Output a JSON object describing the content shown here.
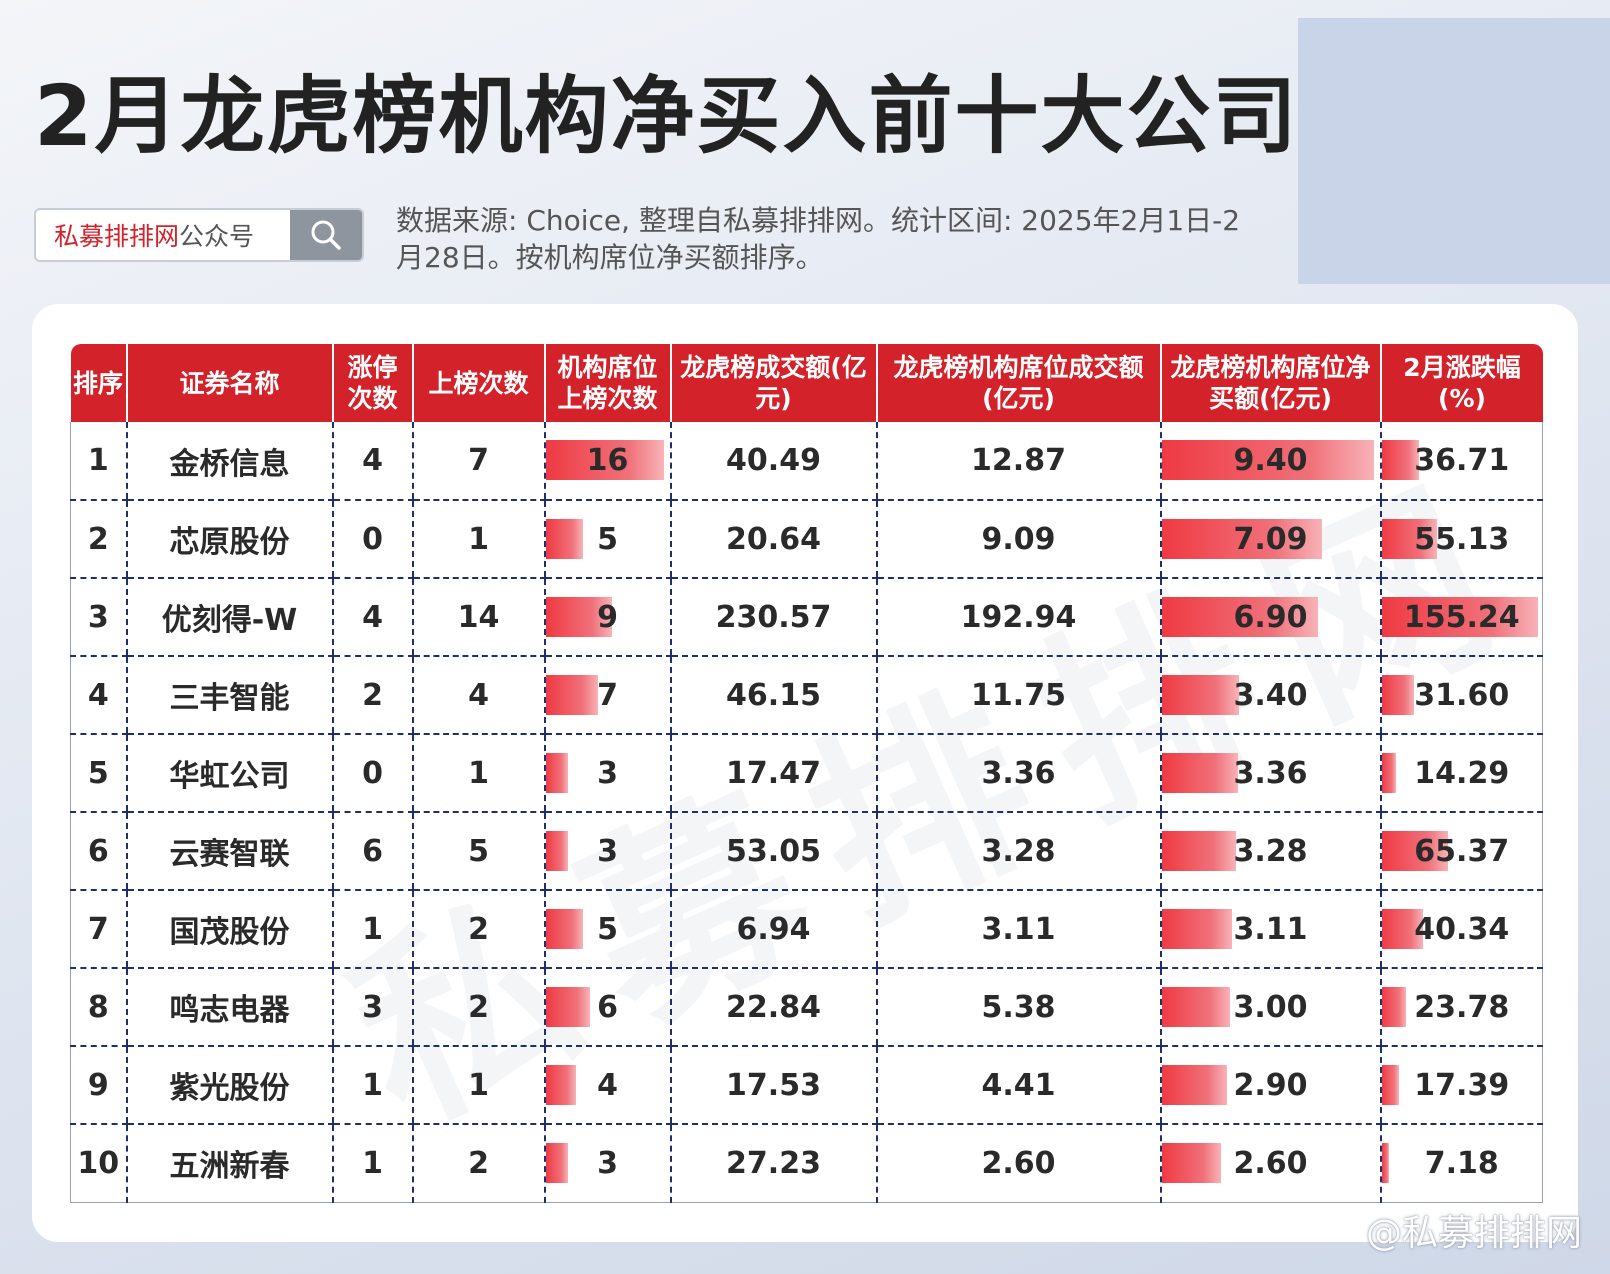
{
  "title": "2月龙虎榜机构净买入前十大公司",
  "search_box": {
    "brand": "私募排排网",
    "suffix": "公众号",
    "icon": "search-icon"
  },
  "source_note": "数据来源: Choice, 整理自私募排排网。统计区间: 2025年2月1日-2月28日。按机构席位净买额排序。",
  "watermark_text": "私募排排网",
  "footer_mark": "@私募排排网",
  "colors": {
    "header_bg": "#d3222a",
    "bar": "#ef3a43",
    "brand_red": "#d3222a"
  },
  "table": {
    "headers": [
      "排序",
      "证券名称",
      "涨停次数",
      "上榜次数",
      "机构席位上榜次数",
      "龙虎榜成交额(亿元)",
      "龙虎榜机构席位成交额(亿元)",
      "龙虎榜机构席位净买额(亿元)",
      "2月涨跌幅(%)"
    ],
    "rows": [
      {
        "rank": "1",
        "name": "金桥信息",
        "limit_up": "4",
        "appearances": "7",
        "inst_appearances": "16",
        "turnover": "40.49",
        "inst_turnover": "12.87",
        "net_buy": "9.40",
        "change": "36.71"
      },
      {
        "rank": "2",
        "name": "芯原股份",
        "limit_up": "0",
        "appearances": "1",
        "inst_appearances": "5",
        "turnover": "20.64",
        "inst_turnover": "9.09",
        "net_buy": "7.09",
        "change": "55.13"
      },
      {
        "rank": "3",
        "name": "优刻得-W",
        "limit_up": "4",
        "appearances": "14",
        "inst_appearances": "9",
        "turnover": "230.57",
        "inst_turnover": "192.94",
        "net_buy": "6.90",
        "change": "155.24"
      },
      {
        "rank": "4",
        "name": "三丰智能",
        "limit_up": "2",
        "appearances": "4",
        "inst_appearances": "7",
        "turnover": "46.15",
        "inst_turnover": "11.75",
        "net_buy": "3.40",
        "change": "31.60"
      },
      {
        "rank": "5",
        "name": "华虹公司",
        "limit_up": "0",
        "appearances": "1",
        "inst_appearances": "3",
        "turnover": "17.47",
        "inst_turnover": "3.36",
        "net_buy": "3.36",
        "change": "14.29"
      },
      {
        "rank": "6",
        "name": "云赛智联",
        "limit_up": "6",
        "appearances": "5",
        "inst_appearances": "3",
        "turnover": "53.05",
        "inst_turnover": "3.28",
        "net_buy": "3.28",
        "change": "65.37"
      },
      {
        "rank": "7",
        "name": "国茂股份",
        "limit_up": "1",
        "appearances": "2",
        "inst_appearances": "5",
        "turnover": "6.94",
        "inst_turnover": "3.11",
        "net_buy": "3.11",
        "change": "40.34"
      },
      {
        "rank": "8",
        "name": "鸣志电器",
        "limit_up": "3",
        "appearances": "2",
        "inst_appearances": "6",
        "turnover": "22.84",
        "inst_turnover": "5.38",
        "net_buy": "3.00",
        "change": "23.78"
      },
      {
        "rank": "9",
        "name": "紫光股份",
        "limit_up": "1",
        "appearances": "1",
        "inst_appearances": "4",
        "turnover": "17.53",
        "inst_turnover": "4.41",
        "net_buy": "2.90",
        "change": "17.39"
      },
      {
        "rank": "10",
        "name": "五洲新春",
        "limit_up": "1",
        "appearances": "2",
        "inst_appearances": "3",
        "turnover": "27.23",
        "inst_turnover": "2.60",
        "net_buy": "2.60",
        "change": "7.18"
      }
    ]
  }
}
